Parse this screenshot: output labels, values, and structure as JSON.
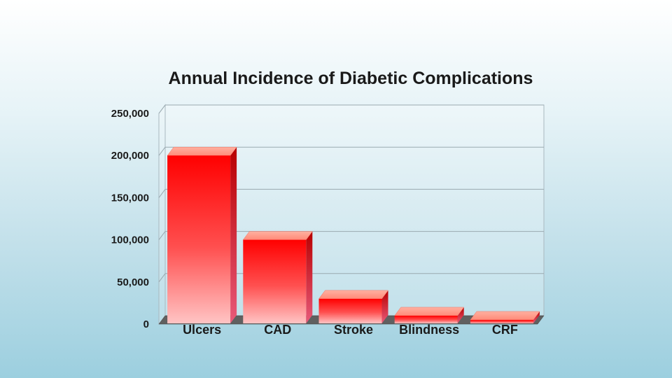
{
  "chart_data": {
    "type": "bar",
    "title": "Annual Incidence of Diabetic Complications",
    "categories": [
      "Ulcers",
      "CAD",
      "Stroke",
      "Blindness",
      "CRF"
    ],
    "values": [
      200000,
      100000,
      30000,
      10000,
      5000
    ],
    "ylim": [
      0,
      250000
    ],
    "yticks": [
      0,
      50000,
      100000,
      150000,
      200000,
      250000
    ],
    "ytick_labels": [
      "0",
      "50,000",
      "100,000",
      "150,000",
      "200,000",
      "250,000"
    ],
    "xlabel": "",
    "ylabel": "",
    "grid": true,
    "legend": "none",
    "bar_color": "#ff1a1a"
  }
}
